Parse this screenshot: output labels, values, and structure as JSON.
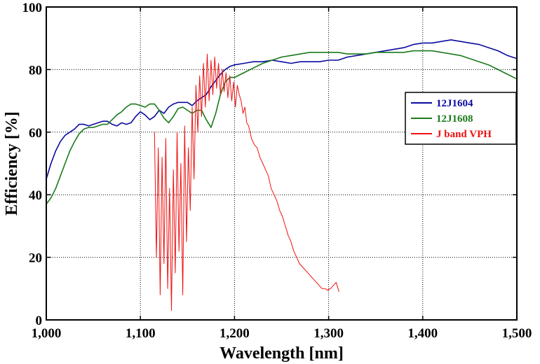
{
  "chart_data": {
    "type": "line",
    "xlabel": "Wavelength [nm]",
    "ylabel": "Efficiency [%]",
    "xlim": [
      1000,
      1500
    ],
    "ylim": [
      0,
      100
    ],
    "x_ticks": [
      1000,
      1100,
      1200,
      1300,
      1400,
      1500
    ],
    "x_tick_labels": [
      "1,000",
      "1,100",
      "1,200",
      "1,300",
      "1,400",
      "1,500"
    ],
    "y_ticks": [
      0,
      20,
      40,
      60,
      80,
      100
    ],
    "y_tick_labels": [
      "0",
      "20",
      "40",
      "60",
      "80",
      "100"
    ],
    "grid": true,
    "legend_position": "right",
    "series": [
      {
        "name": "12J1604",
        "color": "#0a0aa0",
        "x": [
          1000,
          1005,
          1010,
          1015,
          1020,
          1025,
          1030,
          1035,
          1040,
          1045,
          1050,
          1055,
          1060,
          1065,
          1070,
          1075,
          1080,
          1085,
          1090,
          1095,
          1100,
          1105,
          1110,
          1115,
          1120,
          1125,
          1130,
          1135,
          1140,
          1145,
          1150,
          1155,
          1160,
          1165,
          1170,
          1175,
          1180,
          1185,
          1190,
          1195,
          1200,
          1210,
          1220,
          1230,
          1240,
          1250,
          1260,
          1270,
          1280,
          1290,
          1300,
          1310,
          1320,
          1330,
          1340,
          1350,
          1360,
          1370,
          1380,
          1390,
          1400,
          1410,
          1420,
          1430,
          1440,
          1450,
          1460,
          1470,
          1480,
          1490,
          1500
        ],
        "y": [
          45,
          50,
          54,
          57,
          59,
          60,
          61,
          62.5,
          62.5,
          62,
          62.5,
          63,
          63.5,
          63.5,
          62.5,
          62,
          63,
          62.5,
          63,
          65,
          66.5,
          65.5,
          64,
          65,
          67,
          66,
          68,
          69,
          69.5,
          69.5,
          69.5,
          68.5,
          70,
          71,
          72,
          74.5,
          76.5,
          78.5,
          80,
          81,
          81.5,
          82,
          82.5,
          82.5,
          83,
          82.5,
          82,
          82.5,
          82.5,
          82.5,
          83,
          83,
          84,
          84.5,
          85,
          85.5,
          86,
          86.5,
          87,
          88,
          88.5,
          88.5,
          89,
          89.5,
          89,
          88.5,
          88,
          87,
          86,
          84.5,
          83.5
        ]
      },
      {
        "name": "12J1608",
        "color": "#1a7a1a",
        "x": [
          1000,
          1005,
          1010,
          1015,
          1020,
          1025,
          1030,
          1035,
          1040,
          1045,
          1050,
          1055,
          1060,
          1065,
          1070,
          1075,
          1080,
          1085,
          1090,
          1095,
          1100,
          1105,
          1110,
          1115,
          1120,
          1125,
          1130,
          1135,
          1140,
          1145,
          1150,
          1155,
          1160,
          1165,
          1170,
          1175,
          1180,
          1185,
          1190,
          1195,
          1200,
          1210,
          1220,
          1230,
          1240,
          1250,
          1260,
          1270,
          1280,
          1290,
          1300,
          1310,
          1320,
          1330,
          1340,
          1350,
          1360,
          1370,
          1380,
          1390,
          1400,
          1410,
          1420,
          1430,
          1440,
          1450,
          1460,
          1470,
          1480,
          1490,
          1500
        ],
        "y": [
          37,
          39,
          42,
          46,
          50,
          54,
          57,
          59.5,
          61,
          61.5,
          61.5,
          62,
          62.5,
          62.5,
          64,
          65.5,
          66.5,
          68,
          69,
          69,
          68.5,
          68,
          69,
          69,
          67,
          64.5,
          63,
          65,
          67.5,
          68,
          67,
          66,
          67,
          67,
          64,
          61.5,
          66,
          72,
          76,
          77.5,
          77.5,
          79,
          80.5,
          82,
          83,
          84,
          84.5,
          85,
          85.5,
          85.5,
          85.5,
          85.5,
          85,
          85,
          85,
          85.5,
          85.5,
          85.5,
          85.5,
          86,
          86,
          86,
          85.5,
          85,
          84.5,
          83.5,
          82.5,
          81.5,
          80,
          78.5,
          77
        ]
      },
      {
        "name": "J band VPH",
        "color": "#ee1111",
        "x": [
          1115,
          1117,
          1119,
          1121,
          1123,
          1125,
          1127,
          1129,
          1131,
          1133,
          1135,
          1137,
          1139,
          1141,
          1143,
          1145,
          1147,
          1149,
          1151,
          1153,
          1155,
          1157,
          1159,
          1161,
          1163,
          1165,
          1167,
          1169,
          1171,
          1173,
          1175,
          1177,
          1179,
          1181,
          1183,
          1185,
          1187,
          1189,
          1191,
          1193,
          1195,
          1197,
          1199,
          1201,
          1203,
          1205,
          1207,
          1209,
          1211,
          1213,
          1215,
          1218,
          1221,
          1224,
          1227,
          1230,
          1233,
          1236,
          1239,
          1242,
          1245,
          1248,
          1251,
          1254,
          1257,
          1260,
          1263,
          1266,
          1269,
          1272,
          1275,
          1278,
          1281,
          1284,
          1287,
          1290,
          1293,
          1296,
          1299,
          1302,
          1305,
          1308,
          1311
        ],
        "y": [
          60,
          20,
          55,
          8,
          52,
          18,
          58,
          10,
          42,
          3,
          48,
          15,
          60,
          22,
          50,
          8,
          62,
          25,
          55,
          35,
          68,
          45,
          75,
          60,
          78,
          65,
          82,
          68,
          85,
          70,
          83,
          72,
          84,
          74,
          82,
          72,
          80,
          73,
          79,
          71,
          78,
          70,
          76,
          68,
          75,
          72,
          70,
          66,
          68,
          63,
          62,
          58,
          56,
          55,
          52,
          50,
          48,
          46,
          42,
          40,
          38,
          35,
          33,
          30,
          27,
          25,
          22,
          20,
          18,
          17,
          16,
          15,
          14,
          13,
          12,
          11,
          10,
          10,
          9.5,
          10,
          11,
          12,
          9
        ]
      }
    ]
  }
}
